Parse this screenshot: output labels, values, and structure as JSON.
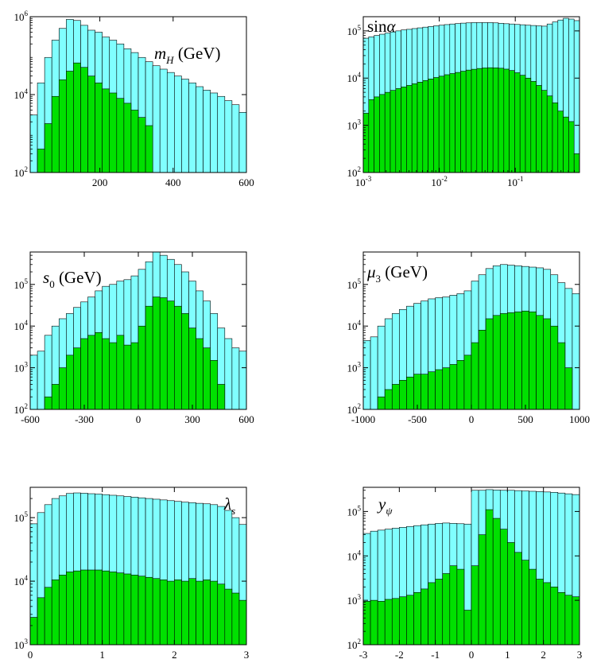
{
  "colors": {
    "cyan": "#80FFFF",
    "green": "#00E000",
    "edge": "#000000"
  },
  "chart_data": [
    {
      "type": "bar",
      "label": {
        "main": "m",
        "sub": "H",
        "tail": " (GeV)"
      },
      "xscale": "linear",
      "xlim": [
        10,
        600
      ],
      "nbins": 30,
      "yscale": "log",
      "ylim": [
        100,
        1000000
      ],
      "xticks": [
        {
          "v": 200,
          "t": "200"
        },
        {
          "v": 400,
          "t": "400"
        },
        {
          "v": 600,
          "t": "600"
        }
      ],
      "yticks": [
        {
          "v": 100,
          "e": "2"
        },
        {
          "v": 10000,
          "e": "4"
        },
        {
          "v": 1000000,
          "e": "6"
        }
      ],
      "series": [
        {
          "color": "cyan",
          "values": [
            3000,
            20000,
            90000,
            250000,
            500000,
            850000,
            800000,
            600000,
            450000,
            400000,
            300000,
            250000,
            200000,
            150000,
            120000,
            90000,
            70000,
            55000,
            45000,
            37000,
            30000,
            25000,
            20000,
            16000,
            13000,
            11000,
            9000,
            7000,
            5500,
            3500
          ]
        },
        {
          "color": "green",
          "values": [
            0,
            400,
            1800,
            9000,
            24000,
            40000,
            65000,
            50000,
            30000,
            20000,
            14000,
            11000,
            8000,
            6000,
            4000,
            2600,
            1600,
            0,
            0,
            0,
            0,
            0,
            0,
            0,
            0,
            0,
            0,
            0,
            0,
            0
          ]
        }
      ]
    },
    {
      "type": "bar",
      "label": {
        "main": "sin",
        "greek": "α"
      },
      "xscale": "log",
      "xlim": [
        0.001,
        0.7
      ],
      "nbins": 40,
      "yscale": "log",
      "ylim": [
        100,
        200000
      ],
      "xticks": [
        {
          "v": 0.001,
          "e": "-3"
        },
        {
          "v": 0.01,
          "e": "-2"
        },
        {
          "v": 0.1,
          "e": "-1"
        }
      ],
      "yticks": [
        {
          "v": 100,
          "e": "2"
        },
        {
          "v": 1000,
          "e": "3"
        },
        {
          "v": 10000,
          "e": "4"
        },
        {
          "v": 100000,
          "e": "5"
        }
      ],
      "series": [
        {
          "color": "cyan",
          "values": [
            70000,
            75000,
            80000,
            85000,
            90000,
            95000,
            100000,
            105000,
            108000,
            112000,
            116000,
            120000,
            124000,
            128000,
            132000,
            136000,
            140000,
            143000,
            146000,
            148000,
            150000,
            150000,
            150000,
            150000,
            148000,
            145000,
            142000,
            140000,
            137000,
            135000,
            132000,
            130000,
            128000,
            126000,
            140000,
            155000,
            170000,
            185000,
            178000,
            165000
          ]
        },
        {
          "color": "green",
          "values": [
            1800,
            3500,
            4000,
            4500,
            5000,
            5500,
            6000,
            6500,
            7000,
            7600,
            8200,
            8900,
            9600,
            10300,
            11000,
            11800,
            12500,
            13200,
            14000,
            14800,
            15400,
            16000,
            16400,
            16600,
            16500,
            16200,
            15500,
            14500,
            13000,
            11500,
            10000,
            8500,
            7000,
            5500,
            4200,
            3000,
            2000,
            1500,
            1200,
            250
          ]
        }
      ]
    },
    {
      "type": "bar",
      "label": {
        "main": "s",
        "sub": "0",
        "tail": " (GeV)"
      },
      "xscale": "linear",
      "xlim": [
        -600,
        600
      ],
      "nbins": 30,
      "yscale": "log",
      "ylim": [
        100,
        600000
      ],
      "xticks": [
        {
          "v": -600,
          "t": "-600"
        },
        {
          "v": -300,
          "t": "-300"
        },
        {
          "v": 0,
          "t": "0"
        },
        {
          "v": 300,
          "t": "300"
        },
        {
          "v": 600,
          "t": "600"
        }
      ],
      "yticks": [
        {
          "v": 100,
          "e": "2"
        },
        {
          "v": 1000,
          "e": "3"
        },
        {
          "v": 10000,
          "e": "4"
        },
        {
          "v": 100000,
          "e": "5"
        }
      ],
      "series": [
        {
          "color": "cyan",
          "values": [
            2000,
            2500,
            6000,
            10000,
            15000,
            20000,
            28000,
            38000,
            50000,
            70000,
            90000,
            100000,
            120000,
            130000,
            160000,
            230000,
            350000,
            600000,
            500000,
            400000,
            300000,
            200000,
            120000,
            70000,
            40000,
            20000,
            9000,
            5000,
            3000,
            2500
          ]
        },
        {
          "color": "green",
          "values": [
            0,
            0,
            200,
            400,
            1000,
            2000,
            3000,
            5000,
            6000,
            7000,
            5000,
            4000,
            6000,
            3500,
            4000,
            10000,
            30000,
            50000,
            48000,
            40000,
            30000,
            20000,
            9000,
            5000,
            3000,
            1500,
            400,
            0,
            0,
            0
          ]
        }
      ]
    },
    {
      "type": "bar",
      "label": {
        "main": "μ",
        "sub": "3",
        "tail": " (GeV)"
      },
      "xscale": "linear",
      "xlim": [
        -1000,
        1000
      ],
      "nbins": 30,
      "yscale": "log",
      "ylim": [
        100,
        600000
      ],
      "xticks": [
        {
          "v": -1000,
          "t": "-1000"
        },
        {
          "v": -500,
          "t": "-500"
        },
        {
          "v": 0,
          "t": "0"
        },
        {
          "v": 500,
          "t": "500"
        },
        {
          "v": 1000,
          "t": "1000"
        }
      ],
      "yticks": [
        {
          "v": 100,
          "e": "2"
        },
        {
          "v": 1000,
          "e": "3"
        },
        {
          "v": 10000,
          "e": "4"
        },
        {
          "v": 100000,
          "e": "5"
        }
      ],
      "series": [
        {
          "color": "cyan",
          "values": [
            4500,
            5500,
            10000,
            15000,
            20000,
            25000,
            30000,
            35000,
            40000,
            45000,
            48000,
            50000,
            55000,
            60000,
            70000,
            120000,
            170000,
            240000,
            280000,
            300000,
            290000,
            280000,
            270000,
            260000,
            250000,
            230000,
            170000,
            110000,
            80000,
            60000
          ]
        },
        {
          "color": "green",
          "values": [
            0,
            0,
            200,
            300,
            400,
            500,
            600,
            700,
            700,
            800,
            900,
            1000,
            1200,
            1500,
            2000,
            4000,
            8000,
            15000,
            18000,
            20000,
            21000,
            22000,
            23000,
            22000,
            18000,
            15000,
            10000,
            4000,
            1000,
            0
          ]
        }
      ]
    },
    {
      "type": "bar",
      "label": {
        "main": "λ",
        "sub": "s"
      },
      "xscale": "linear",
      "xlim": [
        0,
        3
      ],
      "nbins": 30,
      "yscale": "log",
      "ylim": [
        1000,
        300000
      ],
      "xticks": [
        {
          "v": 0,
          "t": "0"
        },
        {
          "v": 1,
          "t": "1"
        },
        {
          "v": 2,
          "t": "2"
        },
        {
          "v": 3,
          "t": "3"
        }
      ],
      "yticks": [
        {
          "v": 1000,
          "e": "3"
        },
        {
          "v": 10000,
          "e": "4"
        },
        {
          "v": 100000,
          "e": "5"
        }
      ],
      "series": [
        {
          "color": "cyan",
          "values": [
            80000,
            120000,
            160000,
            200000,
            220000,
            240000,
            245000,
            242000,
            238000,
            235000,
            230000,
            225000,
            220000,
            215000,
            210000,
            205000,
            200000,
            195000,
            190000,
            185000,
            180000,
            175000,
            172000,
            168000,
            165000,
            160000,
            150000,
            130000,
            100000,
            78000
          ]
        },
        {
          "color": "green",
          "values": [
            2700,
            5500,
            8000,
            10500,
            12500,
            14000,
            14500,
            15000,
            15000,
            15000,
            14500,
            14000,
            13500,
            13000,
            12500,
            12000,
            11500,
            11000,
            10500,
            10000,
            10500,
            10000,
            11000,
            10000,
            10500,
            10000,
            9000,
            7500,
            6500,
            5000
          ]
        }
      ]
    },
    {
      "type": "bar",
      "label": {
        "main": "y",
        "sub": "ψ"
      },
      "xscale": "linear",
      "xlim": [
        -3,
        3
      ],
      "nbins": 30,
      "yscale": "log",
      "ylim": [
        100,
        350000
      ],
      "xticks": [
        {
          "v": -3,
          "t": "-3"
        },
        {
          "v": -2,
          "t": "-2"
        },
        {
          "v": -1,
          "t": "-1"
        },
        {
          "v": 0,
          "t": "0"
        },
        {
          "v": 1,
          "t": "1"
        },
        {
          "v": 2,
          "t": "2"
        },
        {
          "v": 3,
          "t": "3"
        }
      ],
      "yticks": [
        {
          "v": 100,
          "e": "2"
        },
        {
          "v": 1000,
          "e": "3"
        },
        {
          "v": 10000,
          "e": "4"
        },
        {
          "v": 100000,
          "e": "5"
        }
      ],
      "series": [
        {
          "color": "cyan",
          "values": [
            32000,
            36000,
            38000,
            40000,
            42000,
            44000,
            46000,
            48000,
            50000,
            52000,
            54000,
            55000,
            54000,
            53000,
            52000,
            300000,
            300000,
            310000,
            305000,
            300000,
            300000,
            295000,
            290000,
            285000,
            280000,
            275000,
            270000,
            260000,
            250000,
            240000
          ]
        },
        {
          "color": "green",
          "values": [
            950,
            1000,
            950,
            1050,
            1100,
            1200,
            1300,
            1500,
            1800,
            2500,
            3000,
            4000,
            6000,
            5000,
            600,
            6000,
            30000,
            110000,
            70000,
            40000,
            20000,
            12000,
            8000,
            5000,
            3000,
            2500,
            2000,
            1500,
            1300,
            1200
          ]
        }
      ]
    }
  ]
}
